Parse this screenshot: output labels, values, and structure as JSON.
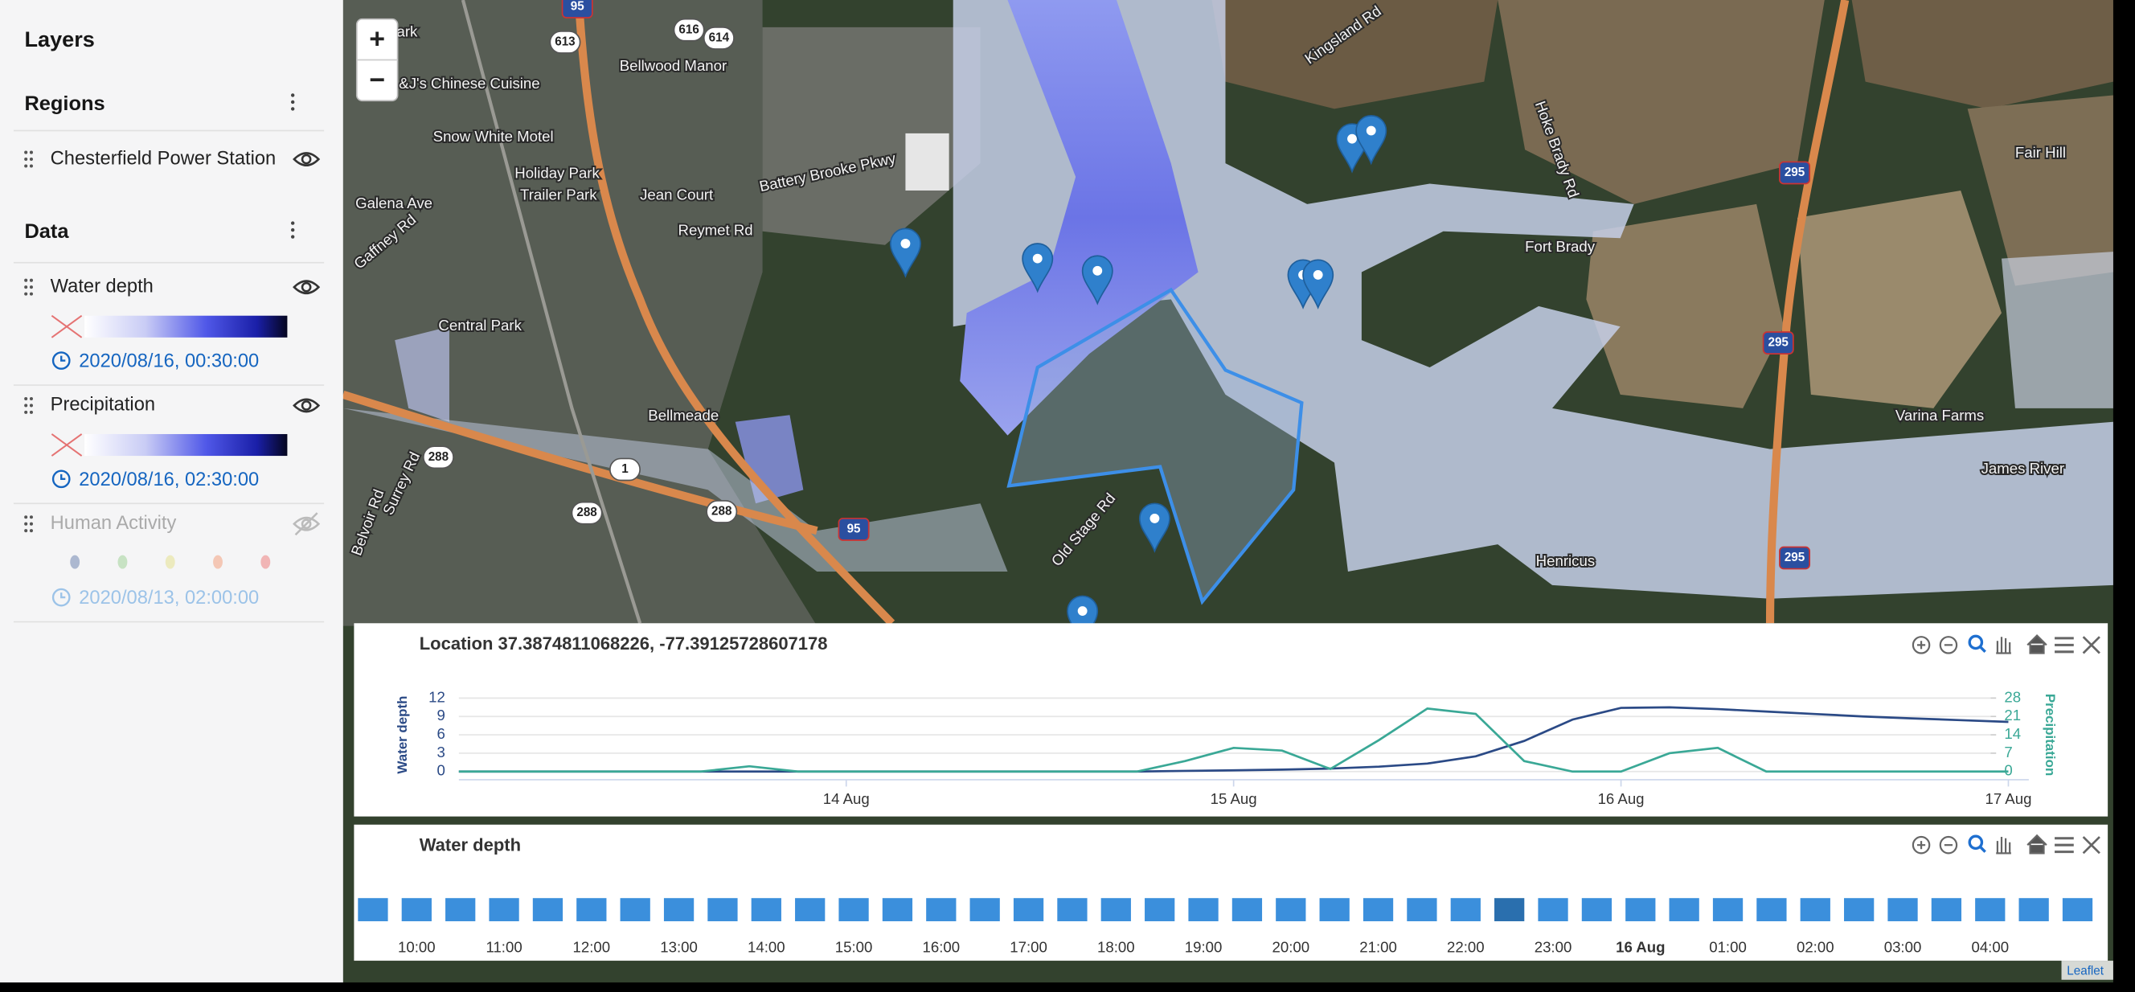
{
  "sidebar": {
    "title": "Layers",
    "regions": {
      "title": "Regions",
      "items": [
        {
          "name": "Chesterfield Power Station",
          "visible": true
        }
      ]
    },
    "data": {
      "title": "Data",
      "layers": [
        {
          "name": "Water depth",
          "time": "2020/08/16, 00:30:00",
          "visible": true
        },
        {
          "name": "Precipitation",
          "time": "2020/08/16, 02:30:00",
          "visible": true
        },
        {
          "name": "Human Activity",
          "time": "2020/08/13, 02:00:00",
          "visible": false
        }
      ]
    }
  },
  "map": {
    "zoom_in": "+",
    "zoom_out": "−",
    "attribution": "Leaflet",
    "labels": [
      "Park",
      "Bellwood Manor",
      "&J's Chinese Cuisine",
      "Snow White Motel",
      "Holiday Park",
      "Trailer Park",
      "Jean Court",
      "Battery Brooke Pkwy",
      "Reymet Rd",
      "Galena Ave",
      "Gaffney Rd",
      "Central Park",
      "Bellmeade",
      "Kingsland Rd",
      "Hoke Brady Rd",
      "Fair Hill",
      "Fort Brady",
      "Varina Farms",
      "James River",
      "Henricus",
      "Old Stage Rd",
      "Surrey Rd",
      "Belvoir Rd"
    ],
    "shields": [
      "95",
      "613",
      "616",
      "614",
      "288",
      "1",
      "288",
      "288",
      "95",
      "295",
      "295",
      "295"
    ]
  },
  "chart_data": [
    {
      "type": "line",
      "title": "Location 37.3874811068226, -77.39125728607178",
      "ylabel": "Water depth",
      "y2label": "Precipitation",
      "x": [
        13,
        13.125,
        13.25,
        13.375,
        13.5,
        13.625,
        13.75,
        13.875,
        14,
        14.125,
        14.25,
        14.375,
        14.5,
        14.625,
        14.75,
        14.875,
        15,
        15.125,
        15.25,
        15.375,
        15.5,
        15.625,
        15.75,
        15.875,
        16,
        16.125,
        16.25,
        16.375,
        16.5,
        16.625,
        16.75,
        16.875,
        17
      ],
      "xlim": [
        13,
        17
      ],
      "xticks": [
        {
          "value": 14,
          "label": "14 Aug"
        },
        {
          "value": 15,
          "label": "15 Aug"
        },
        {
          "value": 16,
          "label": "16 Aug"
        },
        {
          "value": 17,
          "label": "17 Aug"
        }
      ],
      "ylim": [
        0,
        12
      ],
      "yticks": [
        0,
        3,
        6,
        9,
        12
      ],
      "y2lim": [
        0,
        28
      ],
      "y2ticks": [
        0,
        7,
        14,
        21,
        28
      ],
      "grid": true,
      "series": [
        {
          "color": "#2b4a86",
          "values": [
            0,
            0,
            0,
            0,
            0,
            0,
            0,
            0,
            0,
            0,
            0,
            0,
            0,
            0,
            0,
            0.1,
            0.2,
            0.3,
            0.5,
            0.8,
            1.3,
            2.5,
            5,
            8.5,
            10.4,
            10.5,
            10.2,
            9.8,
            9.4,
            9.0,
            8.7,
            8.4,
            8.1
          ]
        },
        {
          "color": "#3aa896",
          "axis": "y2",
          "values": [
            0,
            0,
            0,
            0,
            0,
            0,
            2,
            0,
            0,
            0,
            0,
            0,
            0,
            0,
            0,
            4,
            9,
            8,
            1,
            12,
            24,
            22,
            4,
            0,
            0,
            7,
            9,
            0,
            0,
            0,
            0,
            0,
            0
          ]
        }
      ]
    },
    {
      "type": "timeline",
      "title": "Water depth",
      "categories": [
        "10:00",
        "11:00",
        "12:00",
        "13:00",
        "14:00",
        "15:00",
        "16:00",
        "17:00",
        "18:00",
        "19:00",
        "20:00",
        "21:00",
        "22:00",
        "23:00",
        "16 Aug",
        "01:00",
        "02:00",
        "03:00",
        "04:00"
      ],
      "color": "#3b8fdc"
    }
  ]
}
